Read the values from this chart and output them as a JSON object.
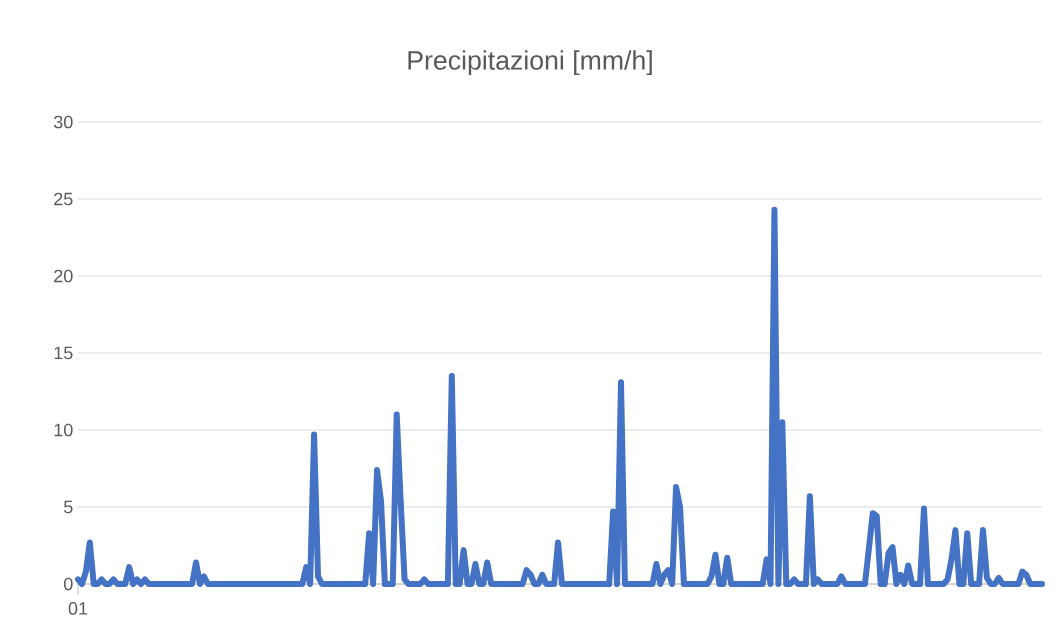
{
  "chart_data": {
    "type": "line",
    "title": "Precipitazioni [mm/h]",
    "categories": [
      "01",
      null,
      null,
      null,
      null,
      null,
      null,
      null,
      null,
      null,
      null,
      null,
      null,
      null,
      null,
      null,
      null,
      null,
      null,
      null,
      null,
      null,
      null,
      null,
      null,
      null,
      null,
      null,
      null,
      null,
      null,
      null,
      null,
      null,
      null,
      null,
      null,
      null,
      null,
      null,
      null,
      null,
      null,
      null,
      null,
      null,
      null,
      null,
      null,
      null,
      null,
      null,
      null,
      null,
      null,
      null,
      null,
      null,
      null,
      null,
      null,
      null,
      null,
      null,
      null,
      null,
      null,
      null,
      null,
      null,
      null,
      null,
      null,
      null,
      null,
      null,
      null,
      null,
      null,
      null,
      null,
      null,
      null,
      null,
      null,
      null,
      null,
      null,
      null,
      null,
      null,
      null,
      null,
      null,
      null,
      null,
      null,
      null,
      null,
      null,
      null,
      null,
      null,
      null,
      null,
      null,
      null,
      null,
      null,
      null,
      null,
      null,
      null,
      null,
      null,
      null,
      null,
      null,
      null,
      null,
      null,
      null,
      null,
      null,
      null,
      null,
      null,
      null,
      null,
      null,
      null,
      null,
      null,
      null,
      null,
      null,
      null,
      null,
      null,
      null,
      null,
      null,
      null,
      null,
      null,
      null,
      null,
      null,
      null,
      null,
      null,
      null,
      null,
      null,
      null,
      null,
      null,
      null,
      null,
      null,
      null,
      null,
      null,
      null,
      null,
      null,
      null,
      null,
      null,
      null,
      null,
      null,
      null,
      null,
      null,
      null,
      null,
      null,
      null,
      null,
      null,
      null,
      null,
      null,
      null,
      null,
      null,
      null,
      null,
      null,
      null,
      null,
      null,
      null,
      null,
      null,
      null,
      null,
      null,
      null,
      null,
      null,
      null,
      null,
      null,
      null,
      null,
      null,
      null,
      null,
      null,
      null,
      null,
      null,
      null,
      null,
      null,
      null,
      null,
      null,
      null,
      null,
      null,
      null,
      null,
      null,
      null,
      null,
      null,
      null,
      null,
      null,
      null,
      null,
      null,
      null,
      null,
      null,
      null,
      null,
      null,
      null,
      null,
      null,
      null,
      null
    ],
    "values": [
      0.3,
      0,
      0.8,
      2.7,
      0,
      0,
      0.3,
      0,
      0,
      0.3,
      0,
      0,
      0,
      1.1,
      0,
      0.3,
      0,
      0.3,
      0,
      0,
      0,
      0,
      0,
      0,
      0,
      0,
      0,
      0,
      0,
      0,
      1.4,
      0,
      0.5,
      0,
      0,
      0,
      0,
      0,
      0,
      0,
      0,
      0,
      0,
      0,
      0,
      0,
      0,
      0,
      0,
      0,
      0,
      0,
      0,
      0,
      0,
      0,
      0,
      0,
      1.1,
      0,
      9.7,
      0.5,
      0,
      0,
      0,
      0,
      0,
      0,
      0,
      0,
      0,
      0,
      0,
      0,
      3.3,
      0,
      7.4,
      5.4,
      0,
      0,
      0,
      11.0,
      5.4,
      0.3,
      0,
      0,
      0,
      0,
      0.3,
      0,
      0,
      0,
      0,
      0,
      0,
      13.5,
      0,
      0,
      2.2,
      0,
      0,
      1.3,
      0,
      0,
      1.4,
      0,
      0,
      0,
      0,
      0,
      0,
      0,
      0,
      0,
      0.9,
      0.6,
      0,
      0,
      0.6,
      0,
      0,
      0,
      2.7,
      0,
      0,
      0,
      0,
      0,
      0,
      0,
      0,
      0,
      0,
      0,
      0,
      0,
      4.7,
      0,
      13.1,
      0,
      0,
      0,
      0,
      0,
      0,
      0,
      0,
      1.3,
      0,
      0.6,
      0.9,
      0,
      6.3,
      5.0,
      0,
      0,
      0,
      0,
      0,
      0,
      0,
      0.5,
      1.9,
      0,
      0,
      1.7,
      0,
      0,
      0,
      0,
      0,
      0,
      0,
      0,
      0,
      1.6,
      0,
      24.3,
      0,
      10.5,
      0,
      0,
      0.3,
      0,
      0,
      0,
      5.7,
      0,
      0.3,
      0,
      0,
      0,
      0,
      0,
      0.5,
      0,
      0,
      0,
      0,
      0,
      0,
      2.3,
      4.6,
      4.4,
      0,
      0,
      2.0,
      2.4,
      0,
      0.6,
      0,
      1.2,
      0,
      0,
      0,
      4.9,
      0,
      0,
      0,
      0,
      0,
      0.3,
      1.6,
      3.5,
      0,
      0,
      3.3,
      0,
      0,
      0,
      3.5,
      0.4,
      0,
      0,
      0.4,
      0,
      0,
      0,
      0,
      0,
      0.8,
      0.6,
      0,
      0,
      0,
      0
    ],
    "color": "#4472c4",
    "ylim": [
      0,
      30
    ],
    "yticks": [
      0,
      5,
      10,
      15,
      20,
      25,
      30
    ],
    "grid": "y"
  }
}
